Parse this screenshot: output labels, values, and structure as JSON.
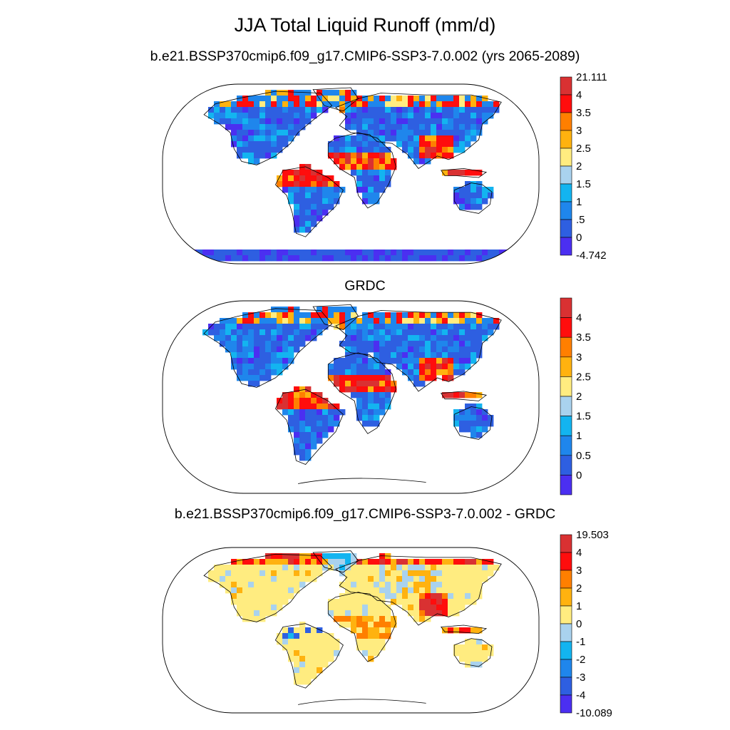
{
  "figure": {
    "title": "JJA Total Liquid Runoff (mm/d)"
  },
  "panels": [
    {
      "id": "model",
      "title": "b.e21.BSSP370cmip6.f09_g17.CMIP6-SSP3-7.0.002 (yrs 2065-2089)",
      "colorbar": {
        "labels": [
          "21.111",
          "4",
          "3.5",
          "3",
          "2.5",
          "2",
          "1.5",
          "1",
          ".5",
          "0",
          "-4.742"
        ],
        "colors": [
          "#d93132",
          "#ff0d0d",
          "#ff7f00",
          "#ffb20f",
          "#ffec80",
          "#a9d2ee",
          "#13b4f0",
          "#1f86ec",
          "#2e5fe1",
          "#4b2ff1"
        ]
      }
    },
    {
      "id": "obs",
      "title": "GRDC",
      "colorbar": {
        "labels": [
          "4",
          "3.5",
          "3",
          "2.5",
          "2",
          "1.5",
          "1",
          "0.5",
          "0"
        ],
        "colors": [
          "#d93132",
          "#ff0d0d",
          "#ff7f00",
          "#ffb20f",
          "#ffec80",
          "#a9d2ee",
          "#13b4f0",
          "#1f86ec",
          "#2e5fe1",
          "#4b2ff1"
        ]
      }
    },
    {
      "id": "diff",
      "title": "b.e21.BSSP370cmip6.f09_g17.CMIP6-SSP3-7.0.002 - GRDC",
      "colorbar": {
        "labels": [
          "19.503",
          "4",
          "3",
          "2",
          "1",
          "0",
          "-1",
          "-2",
          "-3",
          "-4",
          "-10.089"
        ],
        "colors": [
          "#d93132",
          "#ff0d0d",
          "#ff7f00",
          "#ffb20f",
          "#ffec80",
          "#a9d2ee",
          "#13b4f0",
          "#1f86ec",
          "#2e5fe1",
          "#4b2ff1"
        ]
      }
    }
  ]
}
